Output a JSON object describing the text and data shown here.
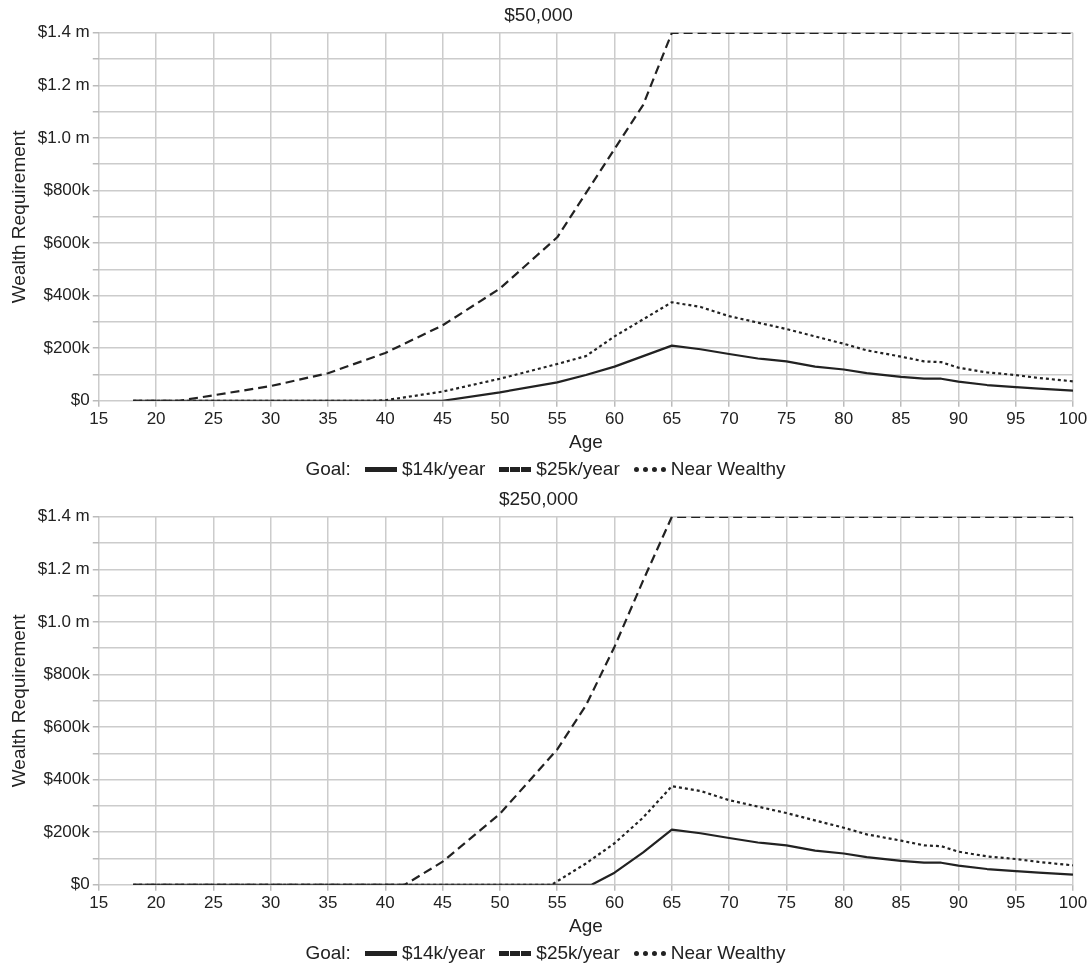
{
  "chart_data": [
    {
      "type": "line",
      "title": "$50,000",
      "xlabel": "Age",
      "ylabel": "Wealth Requirement",
      "legend_title": "Goal:",
      "legend": "bottom",
      "grid": true,
      "marker": "none",
      "xlim": [
        15,
        100
      ],
      "xticks": [
        15,
        20,
        25,
        30,
        35,
        40,
        45,
        50,
        55,
        60,
        65,
        70,
        75,
        80,
        85,
        90,
        95,
        100
      ],
      "ylim": [
        0,
        1400000
      ],
      "yticks": [
        {
          "value": 0,
          "label": "$0"
        },
        {
          "value": 100000,
          "label": null
        },
        {
          "value": 200000,
          "label": "$200k"
        },
        {
          "value": 300000,
          "label": null
        },
        {
          "value": 400000,
          "label": "$400k"
        },
        {
          "value": 500000,
          "label": null
        },
        {
          "value": 600000,
          "label": "$600k"
        },
        {
          "value": 700000,
          "label": null
        },
        {
          "value": 800000,
          "label": "$800k"
        },
        {
          "value": 900000,
          "label": null
        },
        {
          "value": 1000000,
          "label": "$1.0 m"
        },
        {
          "value": 1100000,
          "label": null
        },
        {
          "value": 1200000,
          "label": "$1.2 m"
        },
        {
          "value": 1300000,
          "label": null
        },
        {
          "value": 1400000,
          "label": "$1.4 m"
        }
      ],
      "series": [
        {
          "name": "$14k/year",
          "color": "#222222",
          "line_style": "solid",
          "x": [
            18,
            45,
            50,
            55,
            57.5,
            60,
            65,
            67.5,
            70,
            72.5,
            75,
            77.5,
            80,
            82,
            85,
            87,
            88.5,
            90,
            92.5,
            95,
            97,
            100
          ],
          "values": [
            0,
            0,
            32000,
            70000,
            98000,
            130000,
            210000,
            196000,
            178000,
            161000,
            150000,
            130000,
            119000,
            105000,
            91000,
            84000,
            84000,
            73000,
            60000,
            52000,
            46000,
            39000
          ]
        },
        {
          "name": "$25k/year",
          "color": "#222222",
          "line_style": "dashed",
          "x": [
            18,
            22,
            25,
            30,
            35,
            40,
            45,
            50,
            55,
            60,
            62.5,
            65,
            100
          ],
          "values": [
            0,
            0,
            21000,
            56000,
            105000,
            182000,
            287000,
            427000,
            622000,
            958000,
            1126000,
            1400000,
            1400000
          ]
        },
        {
          "name": "Near Wealthy",
          "color": "#222222",
          "line_style": "dotted",
          "x": [
            18,
            39,
            40,
            45,
            50,
            55,
            57.5,
            60,
            65,
            67.5,
            70,
            75,
            80,
            82,
            85,
            87,
            88.5,
            90,
            92.5,
            95,
            97,
            100
          ],
          "values": [
            0,
            0,
            2000,
            35000,
            84000,
            140000,
            170000,
            245000,
            375000,
            357000,
            322000,
            273000,
            217000,
            192000,
            168000,
            150000,
            147000,
            126000,
            108000,
            98000,
            87000,
            74000
          ]
        }
      ]
    },
    {
      "type": "line",
      "title": "$250,000",
      "xlabel": "Age",
      "ylabel": "Wealth Requirement",
      "legend_title": "Goal:",
      "legend": "bottom",
      "grid": true,
      "marker": "none",
      "xlim": [
        15,
        100
      ],
      "xticks": [
        15,
        20,
        25,
        30,
        35,
        40,
        45,
        50,
        55,
        60,
        65,
        70,
        75,
        80,
        85,
        90,
        95,
        100
      ],
      "ylim": [
        0,
        1400000
      ],
      "yticks": [
        {
          "value": 0,
          "label": "$0"
        },
        {
          "value": 100000,
          "label": null
        },
        {
          "value": 200000,
          "label": "$200k"
        },
        {
          "value": 300000,
          "label": null
        },
        {
          "value": 400000,
          "label": "$400k"
        },
        {
          "value": 500000,
          "label": null
        },
        {
          "value": 600000,
          "label": "$600k"
        },
        {
          "value": 700000,
          "label": null
        },
        {
          "value": 800000,
          "label": "$800k"
        },
        {
          "value": 900000,
          "label": null
        },
        {
          "value": 1000000,
          "label": "$1.0 m"
        },
        {
          "value": 1100000,
          "label": null
        },
        {
          "value": 1200000,
          "label": "$1.2 m"
        },
        {
          "value": 1300000,
          "label": null
        },
        {
          "value": 1400000,
          "label": "$1.4 m"
        }
      ],
      "series": [
        {
          "name": "$14k/year",
          "color": "#222222",
          "line_style": "solid",
          "x": [
            18,
            58,
            60,
            62.5,
            65,
            67.5,
            70,
            72.5,
            75,
            77.5,
            80,
            82,
            85,
            87,
            88.5,
            90,
            92.5,
            95,
            97,
            100
          ],
          "values": [
            0,
            0,
            46000,
            123000,
            210000,
            196000,
            178000,
            161000,
            150000,
            130000,
            119000,
            105000,
            91000,
            84000,
            84000,
            73000,
            60000,
            52000,
            46000,
            39000
          ]
        },
        {
          "name": "$25k/year",
          "color": "#222222",
          "line_style": "dashed",
          "x": [
            18,
            41.7,
            45,
            50,
            55,
            57.5,
            60,
            62.5,
            65,
            100
          ],
          "values": [
            0,
            0,
            88000,
            270000,
            515000,
            682000,
            906000,
            1158000,
            1400000,
            1400000
          ]
        },
        {
          "name": "Near Wealthy",
          "color": "#222222",
          "line_style": "dotted",
          "x": [
            18,
            54.5,
            57.5,
            60,
            62.5,
            65,
            67.5,
            70,
            75,
            80,
            82,
            85,
            87,
            88.5,
            90,
            92.5,
            95,
            97,
            100
          ],
          "values": [
            0,
            0,
            81000,
            158000,
            256000,
            375000,
            357000,
            322000,
            273000,
            217000,
            192000,
            168000,
            150000,
            147000,
            126000,
            108000,
            98000,
            87000,
            74000
          ]
        }
      ]
    }
  ]
}
